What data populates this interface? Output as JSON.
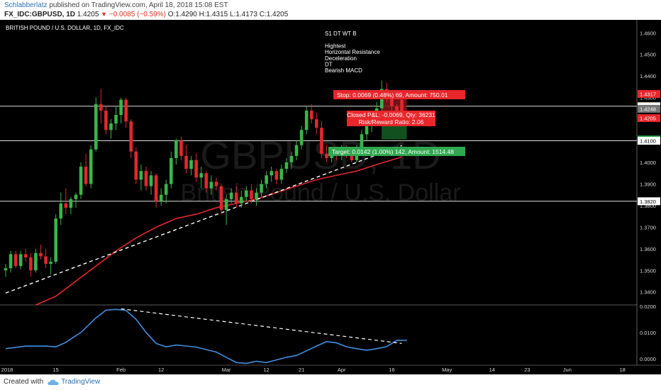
{
  "header": {
    "author": "Schlabberlatz",
    "published": "published on TradingView.com, April 18, 2018 15:08 EST",
    "symbol": "FX_IDC:GBPUSD, 1D",
    "last": "1.4205",
    "change_arrow": "▼",
    "change": "−0.0085 (−0.59%)",
    "ohlc": "O:1.4290 H:1.4315 L:1.4173 C:1.4205"
  },
  "chart": {
    "series_title": "BRITISH POUND / U.S. DOLLAR, 1D, FX_IDC",
    "watermark_symbol": "GBPUSD, 1D",
    "watermark_name": "British Pound / U.S. Dollar",
    "annotation_lines": [
      "S1 DT WT B",
      "",
      "Hightest",
      "Horizontal Resistance",
      "Deceleration",
      "DT",
      "Bearish MACD"
    ],
    "stop_label": "Stop: 0.0069 (0.48%) 69, Amount: 750.01",
    "pnl_line1": "Closed P&L: -0.0069, Qty: 36231",
    "pnl_line2": "Risk/Reward Ratio: 2.06",
    "target_label": "Target: 0.0142 (1.00%) 142, Amount: 1514.48",
    "colors": {
      "background": "#000000",
      "up": "#3bb54a",
      "down": "#e0282e",
      "ma": "#e0282e",
      "trendline": "#ffffff",
      "oscillator": "#3f8fe0",
      "stop_box": "#e8262b",
      "target_box": "#2fa84f"
    }
  },
  "footer": {
    "created": "Created with",
    "brand": "TradingView",
    "brand_icon": "tradingview-cloud-icon"
  },
  "chart_data": {
    "type": "candlestick",
    "title": "BRITISH POUND / U.S. DOLLAR, 1D, FX_IDC",
    "price_axis_ticks": [
      "1.3400",
      "1.3500",
      "1.3600",
      "1.3700",
      "1.3800",
      "1.3900",
      "1.4000",
      "1.4100",
      "1.4200",
      "1.4300",
      "1.4400",
      "1.4500",
      "1.4600"
    ],
    "price_axis_badges": [
      {
        "value": "1.4317",
        "color": "#e8262b"
      },
      {
        "value": "1.4260",
        "color": "#ffffff"
      },
      {
        "value": "1.4248",
        "color": "#777777"
      },
      {
        "value": "1.4205",
        "color": "#e8262b"
      },
      {
        "value": "1.4106",
        "color": "#2fa84f"
      },
      {
        "value": "1.4100",
        "color": "#ffffff"
      },
      {
        "value": "1.3820",
        "color": "#ffffff"
      }
    ],
    "oscillator_ticks": [
      "0.0000",
      "0.0100",
      "0.0200"
    ],
    "time_axis_ticks": [
      "2018",
      "15",
      "Feb",
      "12",
      "Mar",
      "12",
      "21",
      "Apr",
      "16",
      "May",
      "14",
      "23",
      "Jun",
      "18"
    ],
    "ylim": [
      1.334,
      1.466
    ],
    "osc_ylim": [
      -0.0025,
      0.0205
    ],
    "horizontal_levels": [
      1.426,
      1.41,
      1.382
    ],
    "trendline": {
      "from": [
        0,
        1.3395
      ],
      "to": [
        79,
        1.4078
      ]
    },
    "osc_trendline": {
      "from": [
        23,
        0.019
      ],
      "to": [
        79,
        0.0058
      ]
    },
    "candles": [
      [
        1.35,
        1.353,
        1.347,
        1.351
      ],
      [
        1.351,
        1.359,
        1.349,
        1.3575
      ],
      [
        1.3575,
        1.359,
        1.351,
        1.352
      ],
      [
        1.352,
        1.359,
        1.3505,
        1.3575
      ],
      [
        1.3575,
        1.36,
        1.354,
        1.356
      ],
      [
        1.356,
        1.358,
        1.347,
        1.35
      ],
      [
        1.35,
        1.36,
        1.349,
        1.358
      ],
      [
        1.358,
        1.362,
        1.355,
        1.3565
      ],
      [
        1.3565,
        1.36,
        1.351,
        1.353
      ],
      [
        1.353,
        1.356,
        1.348,
        1.354
      ],
      [
        1.354,
        1.376,
        1.353,
        1.374
      ],
      [
        1.374,
        1.386,
        1.371,
        1.381
      ],
      [
        1.381,
        1.388,
        1.376,
        1.379
      ],
      [
        1.379,
        1.384,
        1.376,
        1.383
      ],
      [
        1.383,
        1.386,
        1.379,
        1.385
      ],
      [
        1.385,
        1.4,
        1.383,
        1.398
      ],
      [
        1.398,
        1.404,
        1.389,
        1.39
      ],
      [
        1.39,
        1.408,
        1.388,
        1.406
      ],
      [
        1.406,
        1.43,
        1.405,
        1.427
      ],
      [
        1.427,
        1.434,
        1.418,
        1.424
      ],
      [
        1.424,
        1.426,
        1.413,
        1.415
      ],
      [
        1.415,
        1.42,
        1.411,
        1.418
      ],
      [
        1.418,
        1.426,
        1.415,
        1.422
      ],
      [
        1.422,
        1.43,
        1.418,
        1.429
      ],
      [
        1.429,
        1.43,
        1.416,
        1.419
      ],
      [
        1.419,
        1.42,
        1.402,
        1.405
      ],
      [
        1.405,
        1.407,
        1.39,
        1.392
      ],
      [
        1.392,
        1.399,
        1.387,
        1.396
      ],
      [
        1.396,
        1.398,
        1.387,
        1.389
      ],
      [
        1.389,
        1.396,
        1.385,
        1.394
      ],
      [
        1.394,
        1.395,
        1.379,
        1.382
      ],
      [
        1.382,
        1.388,
        1.38,
        1.385
      ],
      [
        1.385,
        1.392,
        1.381,
        1.39
      ],
      [
        1.39,
        1.405,
        1.388,
        1.402
      ],
      [
        1.402,
        1.411,
        1.399,
        1.41
      ],
      [
        1.41,
        1.412,
        1.401,
        1.403
      ],
      [
        1.403,
        1.408,
        1.395,
        1.397
      ],
      [
        1.397,
        1.403,
        1.394,
        1.401
      ],
      [
        1.401,
        1.404,
        1.391,
        1.393
      ],
      [
        1.393,
        1.398,
        1.388,
        1.395
      ],
      [
        1.395,
        1.396,
        1.386,
        1.388
      ],
      [
        1.388,
        1.394,
        1.385,
        1.391
      ],
      [
        1.391,
        1.393,
        1.387,
        1.389
      ],
      [
        1.389,
        1.39,
        1.376,
        1.378
      ],
      [
        1.378,
        1.385,
        1.371,
        1.383
      ],
      [
        1.383,
        1.388,
        1.381,
        1.386
      ],
      [
        1.386,
        1.389,
        1.379,
        1.381
      ],
      [
        1.381,
        1.387,
        1.379,
        1.384
      ],
      [
        1.384,
        1.389,
        1.382,
        1.387
      ],
      [
        1.387,
        1.39,
        1.381,
        1.383
      ],
      [
        1.383,
        1.388,
        1.38,
        1.386
      ],
      [
        1.386,
        1.392,
        1.384,
        1.39
      ],
      [
        1.39,
        1.396,
        1.388,
        1.394
      ],
      [
        1.394,
        1.398,
        1.391,
        1.396
      ],
      [
        1.396,
        1.397,
        1.39,
        1.392
      ],
      [
        1.392,
        1.399,
        1.39,
        1.397
      ],
      [
        1.397,
        1.402,
        1.395,
        1.4
      ],
      [
        1.4,
        1.405,
        1.397,
        1.403
      ],
      [
        1.403,
        1.41,
        1.401,
        1.408
      ],
      [
        1.408,
        1.417,
        1.406,
        1.415
      ],
      [
        1.415,
        1.426,
        1.413,
        1.424
      ],
      [
        1.424,
        1.427,
        1.418,
        1.42
      ],
      [
        1.42,
        1.423,
        1.413,
        1.416
      ],
      [
        1.416,
        1.419,
        1.402,
        1.404
      ],
      [
        1.404,
        1.408,
        1.4,
        1.402
      ],
      [
        1.402,
        1.406,
        1.4,
        1.405
      ],
      [
        1.405,
        1.407,
        1.401,
        1.403
      ],
      [
        1.403,
        1.408,
        1.401,
        1.406
      ],
      [
        1.406,
        1.408,
        1.402,
        1.404
      ],
      [
        1.404,
        1.406,
        1.4,
        1.401
      ],
      [
        1.401,
        1.408,
        1.4,
        1.406
      ],
      [
        1.406,
        1.415,
        1.404,
        1.413
      ],
      [
        1.413,
        1.419,
        1.41,
        1.417
      ],
      [
        1.417,
        1.424,
        1.414,
        1.422
      ],
      [
        1.422,
        1.428,
        1.42,
        1.425
      ],
      [
        1.425,
        1.438,
        1.424,
        1.434
      ],
      [
        1.434,
        1.437,
        1.428,
        1.43
      ],
      [
        1.43,
        1.433,
        1.423,
        1.426
      ],
      [
        1.426,
        1.427,
        1.419,
        1.422
      ],
      [
        1.429,
        1.4315,
        1.4173,
        1.4205
      ]
    ],
    "moving_average": [
      [
        6,
        1.334
      ],
      [
        10,
        1.338
      ],
      [
        14,
        1.345
      ],
      [
        18,
        1.352
      ],
      [
        22,
        1.359
      ],
      [
        26,
        1.365
      ],
      [
        30,
        1.37
      ],
      [
        34,
        1.374
      ],
      [
        38,
        1.376
      ],
      [
        42,
        1.379
      ],
      [
        46,
        1.381
      ],
      [
        50,
        1.383
      ],
      [
        54,
        1.386
      ],
      [
        58,
        1.389
      ],
      [
        62,
        1.392
      ],
      [
        66,
        1.394
      ],
      [
        70,
        1.396
      ],
      [
        74,
        1.399
      ],
      [
        79,
        1.4025
      ]
    ],
    "oscillator": [
      [
        0,
        0.0038
      ],
      [
        4,
        0.0048
      ],
      [
        8,
        0.0048
      ],
      [
        10,
        0.0045
      ],
      [
        12,
        0.0062
      ],
      [
        15,
        0.01
      ],
      [
        18,
        0.0155
      ],
      [
        20,
        0.0185
      ],
      [
        22,
        0.0188
      ],
      [
        24,
        0.0184
      ],
      [
        26,
        0.015
      ],
      [
        28,
        0.01
      ],
      [
        30,
        0.0058
      ],
      [
        32,
        0.0045
      ],
      [
        34,
        0.0052
      ],
      [
        38,
        0.0044
      ],
      [
        42,
        0.0025
      ],
      [
        44,
        0.0005
      ],
      [
        46,
        -0.0015
      ],
      [
        48,
        -0.0018
      ],
      [
        50,
        -0.001
      ],
      [
        52,
        -0.0015
      ],
      [
        54,
        -0.0005
      ],
      [
        56,
        0.0005
      ],
      [
        58,
        0.0012
      ],
      [
        60,
        0.003
      ],
      [
        62,
        0.0048
      ],
      [
        64,
        0.0065
      ],
      [
        66,
        0.006
      ],
      [
        68,
        0.0045
      ],
      [
        70,
        0.0038
      ],
      [
        72,
        0.0032
      ],
      [
        74,
        0.0038
      ],
      [
        76,
        0.0046
      ],
      [
        78,
        0.007
      ],
      [
        80,
        0.007
      ]
    ]
  }
}
